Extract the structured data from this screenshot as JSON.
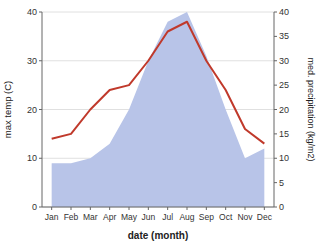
{
  "chart_data": {
    "type": "line",
    "xlabel": "date (month)",
    "ylabel": "max temp (C)",
    "y2label": "med. precipitation (kg/m2)",
    "categories": [
      "Jan",
      "Feb",
      "Mar",
      "Apr",
      "May",
      "Jun",
      "Jul",
      "Aug",
      "Sep",
      "Oct",
      "Nov",
      "Dec"
    ],
    "series": [
      {
        "type": "area",
        "axis": "y2",
        "color": "#b8c4e8",
        "values": [
          9,
          9,
          10,
          13,
          20,
          30,
          38,
          40,
          31,
          20,
          10,
          12
        ]
      },
      {
        "type": "line",
        "color": "#c0392b",
        "values": [
          14,
          15,
          20,
          24,
          25,
          30,
          36,
          38,
          30,
          24,
          16,
          13
        ]
      }
    ],
    "ylim": [
      0,
      40
    ],
    "yticks": [
      0,
      10,
      20,
      30,
      40
    ],
    "y2lim": [
      0,
      40
    ],
    "y2ticks": [
      0,
      5,
      10,
      15,
      20,
      25,
      30,
      35,
      40
    ],
    "grid": true
  }
}
